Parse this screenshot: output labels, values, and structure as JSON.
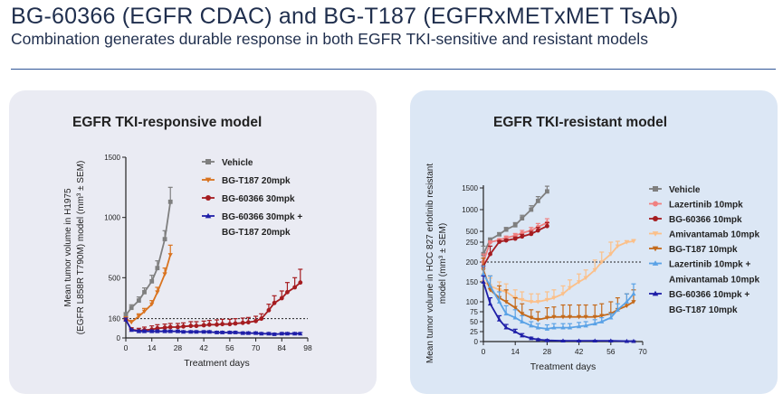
{
  "header": {
    "title": "BG-60366 (EGFR CDAC) and BG-T187 (EGFRxMETxMET TsAb)",
    "subtitle": "Combination generates durable response in both EGFR TKI-sensitive and resistant models"
  },
  "panels": [
    {
      "title": "EGFR TKI-responsive model"
    },
    {
      "title": "EGFR TKI-resistant model"
    }
  ],
  "chart_data": [
    {
      "type": "line",
      "title": "EGFR TKI-responsive model",
      "xlabel": "Treatment days",
      "ylabel": [
        "Mean tumor volume in H1975",
        "(EGFR L858R T790M) model (mm³ ± SEM)"
      ],
      "xlim": [
        0,
        98
      ],
      "ylim": [
        0,
        1500
      ],
      "xticks": [
        "0",
        "14",
        "28",
        "42",
        "56",
        "70",
        "84",
        "98"
      ],
      "yticks": [
        "0",
        "160",
        "500",
        "1000",
        "1500"
      ],
      "reference_line": {
        "y": 160,
        "style": "dotted"
      },
      "legend_position": "top-right",
      "series": [
        {
          "name": "Vehicle",
          "color": "#7f7f7f",
          "marker": "square",
          "x": [
            0,
            3,
            7,
            10,
            14,
            17,
            21,
            24
          ],
          "y": [
            190,
            250,
            310,
            380,
            470,
            580,
            820,
            1130
          ],
          "err": [
            20,
            25,
            30,
            35,
            50,
            60,
            70,
            120
          ]
        },
        {
          "name": "BG-T187 20mpk",
          "color": "#d9731f",
          "marker": "triangle-down",
          "x": [
            0,
            3,
            7,
            10,
            14,
            17,
            21,
            24
          ],
          "y": [
            160,
            130,
            180,
            220,
            280,
            380,
            530,
            690
          ],
          "err": [
            15,
            15,
            20,
            25,
            30,
            40,
            50,
            80
          ]
        },
        {
          "name": "BG-60366 30mpk",
          "color": "#a51c20",
          "marker": "circle",
          "x": [
            0,
            3,
            7,
            10,
            14,
            17,
            21,
            24,
            28,
            31,
            35,
            38,
            42,
            45,
            49,
            52,
            56,
            59,
            63,
            66,
            70,
            73,
            77,
            80,
            84,
            87,
            91,
            94
          ],
          "y": [
            150,
            70,
            60,
            65,
            70,
            80,
            85,
            90,
            90,
            95,
            100,
            100,
            105,
            110,
            110,
            115,
            115,
            120,
            125,
            130,
            140,
            160,
            230,
            290,
            330,
            380,
            420,
            460
          ],
          "err": [
            15,
            15,
            20,
            25,
            30,
            30,
            30,
            30,
            30,
            30,
            35,
            35,
            35,
            35,
            40,
            40,
            40,
            40,
            40,
            40,
            40,
            40,
            50,
            60,
            60,
            80,
            80,
            110
          ]
        },
        {
          "name": "BG-60366 30mpk + BG-T187 20mpk",
          "color": "#1f1fa8",
          "marker": "triangle",
          "x": [
            0,
            3,
            7,
            10,
            14,
            17,
            21,
            24,
            28,
            31,
            35,
            38,
            42,
            45,
            49,
            52,
            56,
            59,
            63,
            66,
            70,
            73,
            77,
            80,
            84,
            87,
            91,
            94
          ],
          "y": [
            150,
            65,
            55,
            55,
            55,
            55,
            55,
            55,
            55,
            50,
            50,
            50,
            50,
            50,
            45,
            45,
            45,
            45,
            40,
            40,
            40,
            35,
            35,
            30,
            35,
            35,
            35,
            35
          ],
          "err": [
            15,
            10,
            10,
            10,
            10,
            10,
            10,
            10,
            10,
            10,
            10,
            10,
            10,
            10,
            10,
            10,
            10,
            10,
            10,
            10,
            10,
            10,
            10,
            10,
            10,
            10,
            10,
            10
          ]
        }
      ]
    },
    {
      "type": "line",
      "title": "EGFR TKI-resistant model",
      "xlabel": "Treatment days",
      "ylabel": [
        "Mean tumor volume in HCC 827 erlotinib resistant",
        "model (mm³ ± SEM)"
      ],
      "xlim": [
        0,
        70
      ],
      "ylim": [
        0,
        1600
      ],
      "y_axis_break": true,
      "xticks": [
        "0",
        "14",
        "28",
        "42",
        "56",
        "70"
      ],
      "yticks": [
        "0",
        "25",
        "50",
        "75",
        "100",
        "150",
        "200",
        "250",
        "500",
        "1000",
        "1500"
      ],
      "reference_line": {
        "y": 200,
        "style": "dotted"
      },
      "legend_position": "top-right",
      "series": [
        {
          "name": "Vehicle",
          "color": "#7f7f7f",
          "marker": "square",
          "x": [
            0,
            3,
            7,
            10,
            14,
            17,
            21,
            24,
            28
          ],
          "y": [
            220,
            310,
            430,
            540,
            640,
            800,
            1000,
            1200,
            1420
          ],
          "err": [
            20,
            30,
            40,
            50,
            60,
            70,
            90,
            100,
            120
          ]
        },
        {
          "name": "Lazertinib 10mpk",
          "color": "#f08080",
          "marker": "circle",
          "x": [
            0,
            3,
            7,
            10,
            14,
            17,
            21,
            24,
            28
          ],
          "y": [
            200,
            250,
            300,
            350,
            400,
            460,
            520,
            600,
            700
          ],
          "err": [
            20,
            25,
            30,
            40,
            50,
            60,
            70,
            80,
            90
          ]
        },
        {
          "name": "BG-60366 10mpk",
          "color": "#a51c20",
          "marker": "circle",
          "x": [
            0,
            3,
            7,
            10,
            14,
            17,
            21,
            24,
            28
          ],
          "y": [
            190,
            220,
            260,
            290,
            330,
            380,
            440,
            520,
            620
          ],
          "err": [
            20,
            20,
            25,
            30,
            40,
            50,
            60,
            70,
            80
          ]
        },
        {
          "name": "Amivantamab 10mpk",
          "color": "#fbc08a",
          "marker": "triangle-down",
          "x": [
            0,
            3,
            7,
            10,
            14,
            17,
            21,
            24,
            28,
            31,
            35,
            38,
            42,
            45,
            49,
            52,
            56,
            59,
            63,
            66
          ],
          "y": [
            150,
            140,
            130,
            125,
            110,
            105,
            100,
            100,
            105,
            110,
            120,
            135,
            150,
            160,
            180,
            200,
            220,
            240,
            250,
            270
          ],
          "err": [
            20,
            20,
            20,
            20,
            20,
            20,
            20,
            20,
            20,
            20,
            20,
            20,
            20,
            20,
            25,
            25,
            30,
            30,
            35,
            40
          ]
        },
        {
          "name": "BG-T187 10mpk",
          "color": "#c46a1b",
          "marker": "triangle-down",
          "x": [
            0,
            3,
            7,
            10,
            14,
            17,
            21,
            24,
            28,
            31,
            35,
            38,
            42,
            45,
            49,
            52,
            56,
            59,
            63,
            66
          ],
          "y": [
            180,
            130,
            110,
            100,
            85,
            70,
            60,
            55,
            60,
            62,
            62,
            62,
            62,
            62,
            62,
            65,
            70,
            80,
            90,
            100
          ],
          "err": [
            30,
            35,
            30,
            30,
            25,
            25,
            20,
            20,
            25,
            25,
            30,
            30,
            30,
            30,
            30,
            30,
            30,
            30,
            30,
            30
          ]
        },
        {
          "name": "Lazertinib 10mpk + Amivantamab 10mpk",
          "color": "#5aa2e6",
          "marker": "triangle",
          "x": [
            0,
            3,
            7,
            10,
            14,
            17,
            21,
            24,
            28,
            31,
            35,
            38,
            42,
            45,
            49,
            52,
            56,
            59,
            63,
            66
          ],
          "y": [
            170,
            140,
            100,
            70,
            60,
            50,
            40,
            35,
            32,
            35,
            35,
            35,
            38,
            40,
            45,
            50,
            60,
            80,
            100,
            120
          ],
          "err": [
            20,
            25,
            25,
            20,
            20,
            15,
            10,
            10,
            10,
            10,
            10,
            10,
            10,
            10,
            10,
            10,
            10,
            15,
            20,
            25
          ]
        },
        {
          "name": "BG-60366 10mpk + BG-T187 10mpk",
          "color": "#1f1fa8",
          "marker": "triangle",
          "x": [
            0,
            3,
            7,
            10,
            14,
            17,
            21,
            24,
            28,
            35,
            42,
            49,
            56,
            63,
            66
          ],
          "y": [
            150,
            95,
            55,
            35,
            25,
            15,
            8,
            5,
            3,
            2,
            2,
            2,
            2,
            1,
            1
          ],
          "err": [
            15,
            15,
            10,
            8,
            6,
            5,
            3,
            2,
            2,
            1,
            1,
            1,
            1,
            1,
            1
          ]
        }
      ]
    }
  ]
}
